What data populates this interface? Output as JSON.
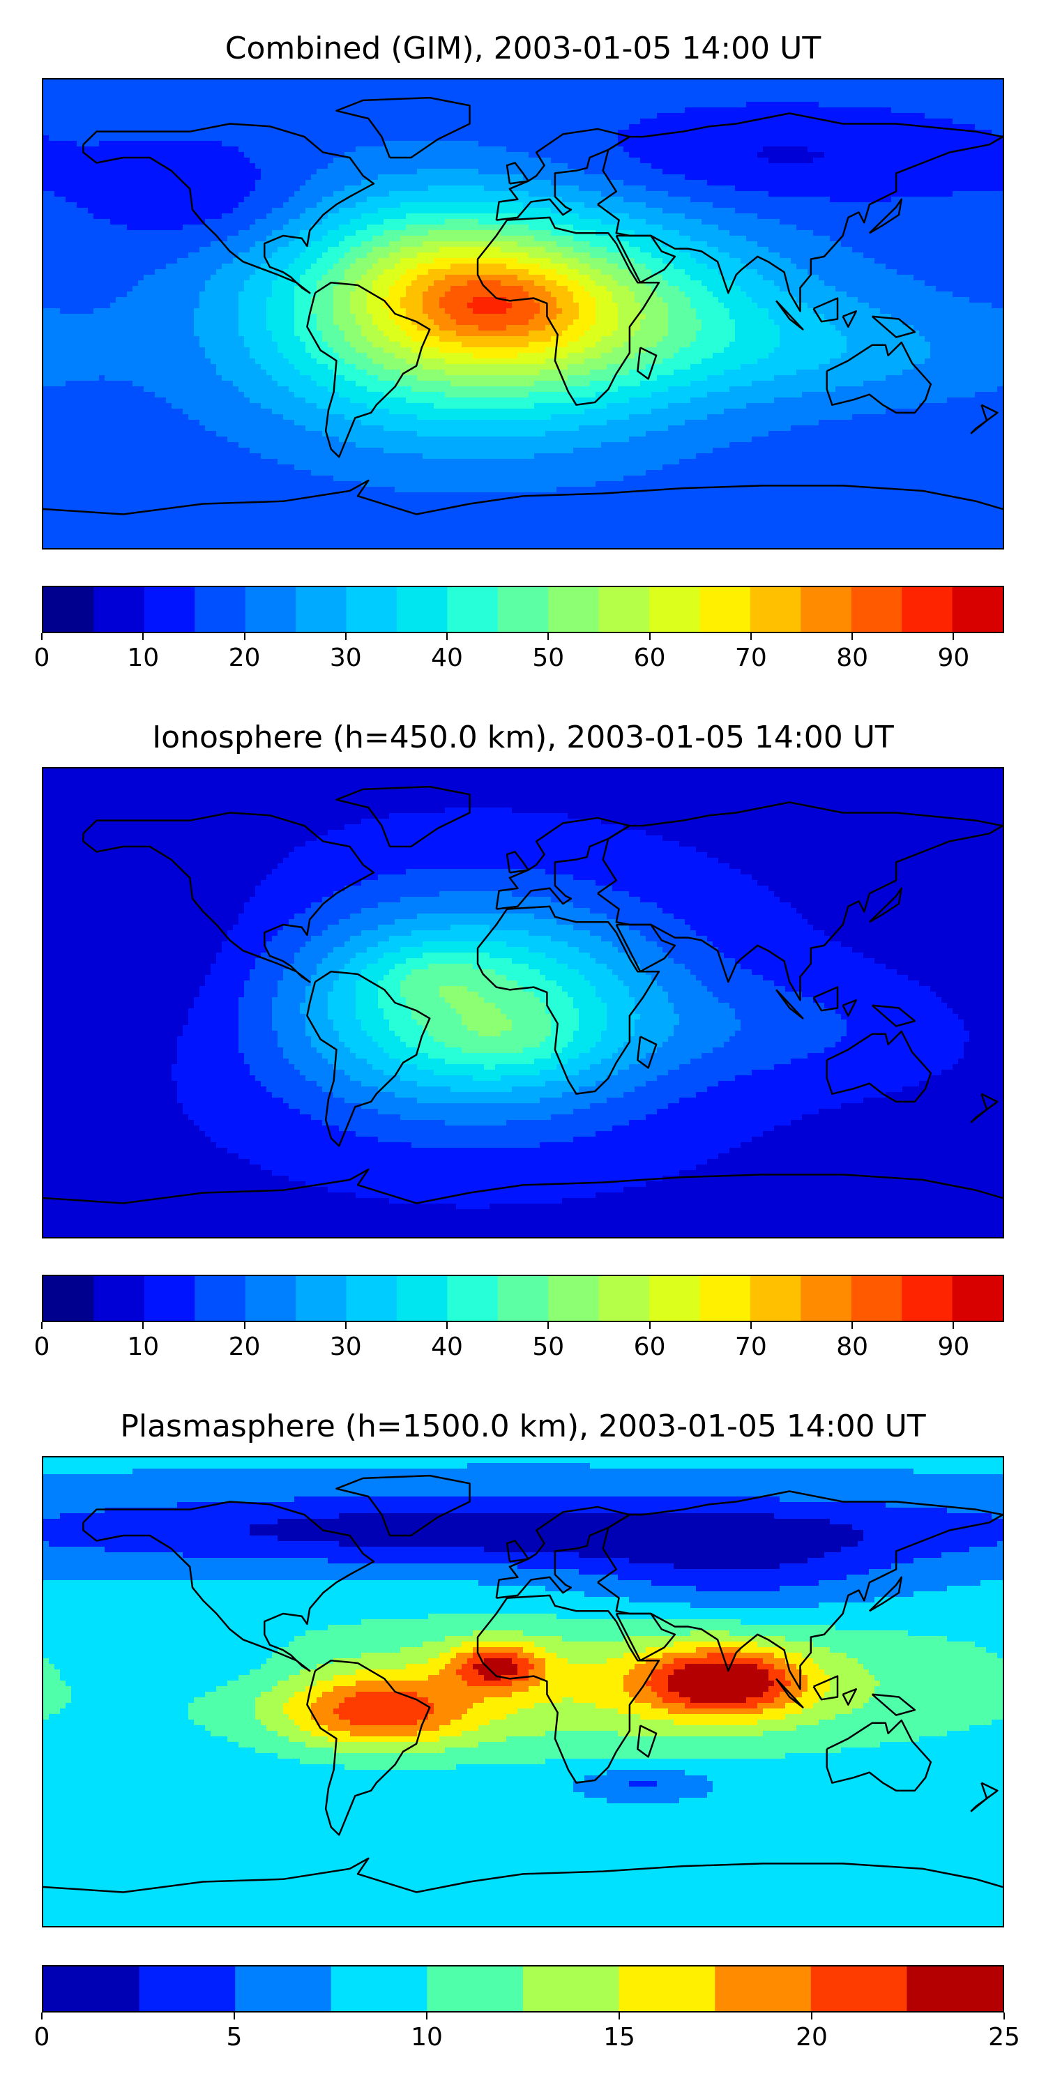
{
  "chart_data": [
    {
      "type": "heatmap",
      "title": "Combined (GIM), 2003-01-05 14:00 UT",
      "xlabel": "",
      "ylabel": "",
      "colorbar": {
        "range": [
          0,
          95
        ],
        "levels": [
          0,
          5,
          10,
          15,
          20,
          25,
          30,
          35,
          40,
          45,
          50,
          55,
          60,
          65,
          70,
          75,
          80,
          85,
          90,
          95
        ],
        "ticks": [
          0,
          10,
          20,
          30,
          40,
          50,
          60,
          70,
          80,
          90
        ],
        "tick_labels": [
          "0",
          "10",
          "20",
          "30",
          "40",
          "50",
          "60",
          "70",
          "80",
          "90"
        ],
        "colors": [
          "#00008f",
          "#0000d6",
          "#0014ff",
          "#0050ff",
          "#0080ff",
          "#00aaff",
          "#00ccff",
          "#00e6f0",
          "#26ffd8",
          "#5cffa4",
          "#8cff73",
          "#b6ff48",
          "#dcff1c",
          "#fff000",
          "#ffc000",
          "#ff8c00",
          "#ff5a00",
          "#ff2400",
          "#d90000",
          "#8f0000"
        ]
      },
      "field": {
        "background": 17,
        "blobs": [
          {
            "lon": -18,
            "lat": 0,
            "rlon": 78,
            "rlat": 42,
            "amp": 46
          },
          {
            "lon": -10,
            "lat": 4,
            "rlon": 32,
            "rlat": 16,
            "amp": 12
          },
          {
            "lon": -35,
            "lat": 18,
            "rlon": 40,
            "rlat": 24,
            "amp": 8
          },
          {
            "lon": 40,
            "lat": 0,
            "rlon": 80,
            "rlat": 28,
            "amp": 12
          },
          {
            "lon": 120,
            "lat": -15,
            "rlon": 70,
            "rlat": 20,
            "amp": 8
          },
          {
            "lon": -120,
            "lat": 45,
            "rlon": 40,
            "rlat": 20,
            "amp": -8
          },
          {
            "lon": 90,
            "lat": 60,
            "rlon": 80,
            "rlat": 18,
            "amp": -8
          }
        ]
      }
    },
    {
      "type": "heatmap",
      "title": "Ionosphere  (h=450.0 km), 2003-01-05 14:00 UT",
      "xlabel": "",
      "ylabel": "",
      "colorbar": {
        "range": [
          0,
          95
        ],
        "levels": [
          0,
          5,
          10,
          15,
          20,
          25,
          30,
          35,
          40,
          45,
          50,
          55,
          60,
          65,
          70,
          75,
          80,
          85,
          90,
          95
        ],
        "ticks": [
          0,
          10,
          20,
          30,
          40,
          50,
          60,
          70,
          80,
          90
        ],
        "tick_labels": [
          "0",
          "10",
          "20",
          "30",
          "40",
          "50",
          "60",
          "70",
          "80",
          "90"
        ],
        "colors": [
          "#00008f",
          "#0000d6",
          "#0014ff",
          "#0050ff",
          "#0080ff",
          "#00aaff",
          "#00ccff",
          "#00e6f0",
          "#26ffd8",
          "#5cffa4",
          "#8cff73",
          "#b6ff48",
          "#dcff1c",
          "#fff000",
          "#ffc000",
          "#ff8c00",
          "#ff5a00",
          "#ff2400",
          "#d90000",
          "#8f0000"
        ]
      },
      "field": {
        "background": 9,
        "blobs": [
          {
            "lon": -18,
            "lat": -2,
            "rlon": 72,
            "rlat": 40,
            "amp": 38
          },
          {
            "lon": -5,
            "lat": -15,
            "rlon": 30,
            "rlat": 14,
            "amp": 6
          },
          {
            "lon": -35,
            "lat": 10,
            "rlon": 25,
            "rlat": 12,
            "amp": 6
          },
          {
            "lon": 100,
            "lat": -10,
            "rlon": 60,
            "rlat": 20,
            "amp": 6
          },
          {
            "lon": -140,
            "lat": 20,
            "rlon": 50,
            "rlat": 40,
            "amp": -5
          }
        ]
      }
    },
    {
      "type": "heatmap",
      "title": "Plasmasphere (h=1500.0 km), 2003-01-05 14:00 UT",
      "xlabel": "",
      "ylabel": "",
      "colorbar": {
        "range": [
          0,
          25
        ],
        "levels": [
          0,
          2.5,
          5,
          7.5,
          10,
          12.5,
          15,
          17.5,
          20,
          22.5,
          25
        ],
        "ticks": [
          0,
          5,
          10,
          15,
          20,
          25
        ],
        "tick_labels": [
          "0",
          "5",
          "10",
          "15",
          "20",
          "25"
        ],
        "colors": [
          "#0000b4",
          "#0020ff",
          "#0080ff",
          "#00e0ff",
          "#50ffaa",
          "#aaff50",
          "#fff000",
          "#ff8c00",
          "#ff3c00",
          "#b40000"
        ]
      },
      "field": {
        "background": 7.8,
        "blobs": [
          {
            "lon": 30,
            "lat": 5,
            "rlon": 200,
            "rlat": 30,
            "amp": 3
          },
          {
            "lon": -55,
            "lat": -8,
            "rlon": 36,
            "rlat": 14,
            "amp": 10
          },
          {
            "lon": -10,
            "lat": 10,
            "rlon": 18,
            "rlat": 9,
            "amp": 10
          },
          {
            "lon": 75,
            "lat": 4,
            "rlon": 30,
            "rlat": 13,
            "amp": 13
          },
          {
            "lon": 30,
            "lat": 0,
            "rlon": 130,
            "rlat": 25,
            "amp": 4
          },
          {
            "lon": 0,
            "lat": 62,
            "rlon": 200,
            "rlat": 14,
            "amp": -7
          },
          {
            "lon": 80,
            "lat": 45,
            "rlon": 60,
            "rlat": 16,
            "amp": -4
          },
          {
            "lon": 45,
            "lat": -35,
            "rlon": 25,
            "rlat": 6,
            "amp": -4
          },
          {
            "lon": -120,
            "lat": 10,
            "rlon": 40,
            "rlat": 12,
            "amp": -2
          }
        ]
      }
    }
  ]
}
